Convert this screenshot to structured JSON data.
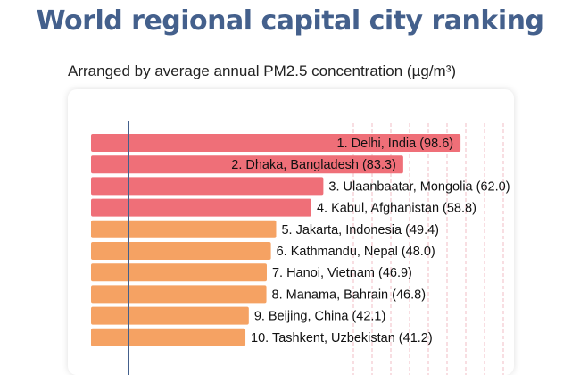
{
  "chart_data": {
    "type": "bar",
    "orientation": "horizontal",
    "title": "World regional capital city ranking",
    "subtitle": "Arranged by average annual PM2.5 concentration (µg/m³)",
    "xlim": [
      0,
      100
    ],
    "categories": [
      "1. Delhi, India",
      "2. Dhaka, Bangladesh",
      "3. Ulaanbaatar, Mongolia",
      "4. Kabul, Afghanistan",
      "5. Jakarta, Indonesia",
      "6. Kathmandu, Nepal",
      "7. Hanoi, Vietnam",
      "8. Manama, Bahrain",
      "9. Beijing, China",
      "10. Tashkent, Uzbekistan"
    ],
    "values": [
      98.6,
      83.3,
      62.0,
      58.8,
      49.4,
      48.0,
      46.9,
      46.8,
      42.1,
      41.2
    ],
    "labels": [
      "1. Delhi, India (98.6)",
      "2. Dhaka, Bangladesh (83.3)",
      "3. Ulaanbaatar, Mongolia (62.0)",
      "4. Kabul, Afghanistan (58.8)",
      "5. Jakarta, Indonesia (49.4)",
      "6. Kathmandu, Nepal (48.0)",
      "7. Hanoi, Vietnam (46.9)",
      "8. Manama, Bahrain (46.8)",
      "9. Beijing, China (42.1)",
      "10. Tashkent, Uzbekistan (41.2)"
    ],
    "reference_line_value": 10,
    "colors": {
      "high": "#ef6f78",
      "moderate": "#f5a263",
      "reference_line": "#44608c",
      "gridline": "#f0bcc4",
      "title": "#44608c"
    },
    "bar_color_groups": [
      "high",
      "high",
      "high",
      "high",
      "moderate",
      "moderate",
      "moderate",
      "moderate",
      "moderate",
      "moderate"
    ]
  }
}
